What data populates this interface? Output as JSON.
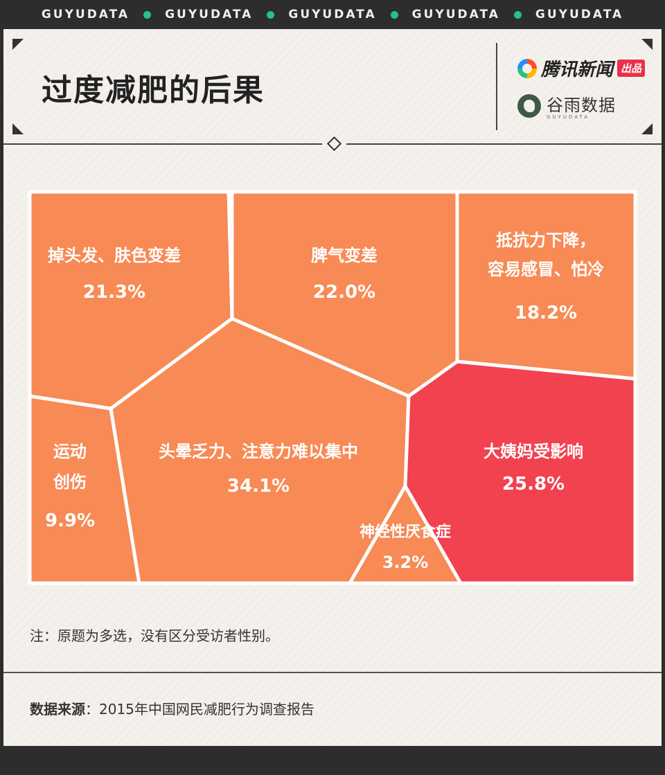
{
  "brand_band": {
    "items": [
      "GUYUDATA",
      "GUYUDATA",
      "GUYUDATA",
      "GUYUDATA",
      "GUYUDATA"
    ]
  },
  "header": {
    "title": "过度减肥的后果",
    "brand_primary": "腾讯新闻",
    "brand_primary_tag": "出品",
    "brand_secondary": "谷雨数据",
    "brand_secondary_sub": "GUYUDATA"
  },
  "colors": {
    "cell_orange": "#f78a55",
    "cell_red": "#f2414f",
    "divider_white": "#ffffff",
    "accent_green": "#26c281"
  },
  "chart_data": {
    "type": "voronoi-treemap",
    "unit": "%",
    "items": [
      {
        "label_lines": [
          "掉头发、肤色变差"
        ],
        "value": 21.3,
        "value_text": "21.3%",
        "color": "#f78a55"
      },
      {
        "label_lines": [
          "脾气变差"
        ],
        "value": 22.0,
        "value_text": "22.0%",
        "color": "#f78a55"
      },
      {
        "label_lines": [
          "抵抗力下降，",
          "容易感冒、怕冷"
        ],
        "value": 18.2,
        "value_text": "18.2%",
        "color": "#f78a55"
      },
      {
        "label_lines": [
          "运动",
          "创伤"
        ],
        "value": 9.9,
        "value_text": "9.9%",
        "color": "#f78a55"
      },
      {
        "label_lines": [
          "头晕乏力、注意力难以集中"
        ],
        "value": 34.1,
        "value_text": "34.1%",
        "color": "#f78a55"
      },
      {
        "label_lines": [
          "大姨妈受影响"
        ],
        "value": 25.8,
        "value_text": "25.8%",
        "color": "#f2414f"
      },
      {
        "label_lines": [
          "神经性厌食症"
        ],
        "value": 3.2,
        "value_text": "3.2%",
        "color": "#f78a55"
      }
    ]
  },
  "note": "注：原题为多选，没有区分受访者性别。",
  "source": {
    "label": "数据来源",
    "separator": "：",
    "text": "2015年中国网民减肥行为调查报告"
  }
}
